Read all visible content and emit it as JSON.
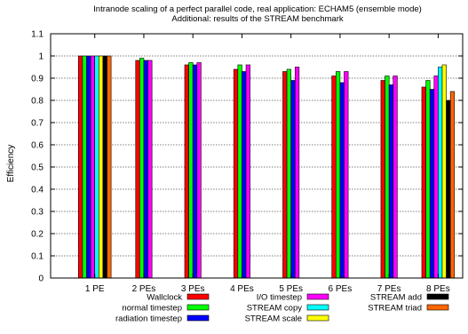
{
  "chart_data": {
    "type": "bar",
    "title": "Intranode scaling of a perfect parallel code, real application: ECHAM5 (ensemble mode)",
    "subtitle": "Additional: results of the STREAM benchmark",
    "xlabel": "",
    "ylabel": "Efficiency",
    "ylim": [
      0,
      1.1
    ],
    "yticks": [
      0,
      0.1,
      0.2,
      0.3,
      0.4,
      0.5,
      0.6,
      0.7,
      0.8,
      0.9,
      1,
      1.1
    ],
    "grid": true,
    "legend_position": "bottom",
    "categories": [
      "1 PE",
      "2 PEs",
      "3 PEs",
      "4 PEs",
      "5 PEs",
      "6 PEs",
      "7 PEs",
      "8 PEs"
    ],
    "series": [
      {
        "name": "Wallclock",
        "color": "#ff0000",
        "values": [
          1.0,
          0.98,
          0.96,
          0.94,
          0.93,
          0.91,
          0.89,
          0.86
        ]
      },
      {
        "name": "normal timestep",
        "color": "#00ff00",
        "values": [
          1.0,
          0.99,
          0.97,
          0.96,
          0.94,
          0.93,
          0.91,
          0.89
        ]
      },
      {
        "name": "radiation timestep",
        "color": "#0000ff",
        "values": [
          1.0,
          0.98,
          0.96,
          0.93,
          0.89,
          0.88,
          0.87,
          0.85
        ]
      },
      {
        "name": "I/O timestep",
        "color": "#ff00ff",
        "values": [
          1.0,
          0.98,
          0.97,
          0.96,
          0.95,
          0.93,
          0.91,
          0.91
        ]
      },
      {
        "name": "STREAM copy",
        "color": "#00ffff",
        "values": [
          1.0,
          null,
          null,
          null,
          null,
          null,
          null,
          0.95
        ]
      },
      {
        "name": "STREAM scale",
        "color": "#ffff00",
        "values": [
          1.0,
          null,
          null,
          null,
          null,
          null,
          null,
          0.96
        ]
      },
      {
        "name": "STREAM add",
        "color": "#000000",
        "values": [
          1.0,
          null,
          null,
          null,
          null,
          null,
          null,
          0.8
        ]
      },
      {
        "name": "STREAM triad",
        "color": "#ff6600",
        "values": [
          1.0,
          null,
          null,
          null,
          null,
          null,
          null,
          0.84
        ]
      }
    ]
  }
}
